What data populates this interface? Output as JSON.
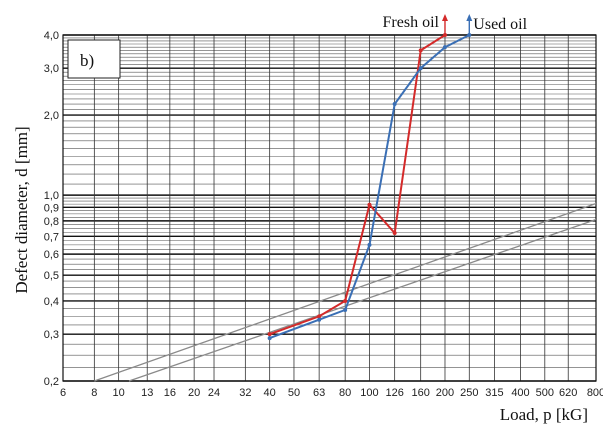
{
  "chart_data": {
    "type": "line",
    "panel_label": "b)",
    "xlabel": "Load, p [kG]",
    "ylabel": "Defect diameter, d [mm]",
    "x_scale": "log",
    "y_scale": "log",
    "xlim": [
      6,
      800
    ],
    "ylim": [
      0.2,
      4.0
    ],
    "x_ticks": [
      6,
      8,
      10,
      13,
      16,
      20,
      24,
      32,
      40,
      50,
      63,
      80,
      100,
      126,
      160,
      200,
      250,
      315,
      400,
      500,
      620,
      800
    ],
    "x_tick_labels": [
      "6",
      "8",
      "10",
      "13",
      "16",
      "20",
      "24",
      "32",
      "40",
      "50",
      "63",
      "80",
      "100",
      "126",
      "160",
      "200",
      "250",
      "315",
      "400",
      "500",
      "620",
      "800"
    ],
    "y_ticks": [
      0.2,
      0.3,
      0.4,
      0.5,
      0.6,
      0.7,
      0.8,
      0.9,
      1.0,
      2.0,
      3.0,
      4.0
    ],
    "y_tick_labels": [
      "0,2",
      "0,3",
      "0,4",
      "0,5",
      "0,6",
      "0,7",
      "0,8",
      "0,9",
      "1,0",
      "2,0",
      "3,0",
      "4,0"
    ],
    "grid": true,
    "legend_position": "top-right",
    "series": [
      {
        "name": "Fresh oil",
        "color": "#d42a2a",
        "x": [
          40,
          63,
          80,
          100,
          126,
          160,
          200
        ],
        "y": [
          0.3,
          0.35,
          0.4,
          0.92,
          0.72,
          3.5,
          4.0
        ]
      },
      {
        "name": "Used oil",
        "color": "#3a6fb5",
        "x": [
          40,
          63,
          80,
          100,
          126,
          160,
          200,
          250
        ],
        "y": [
          0.29,
          0.34,
          0.37,
          0.65,
          2.2,
          3.0,
          3.6,
          4.0
        ]
      }
    ],
    "reference_lines": [
      {
        "color": "#8a8a8a",
        "x": [
          8,
          800
        ],
        "y": [
          0.2,
          0.93
        ]
      },
      {
        "color": "#8a8a8a",
        "x": [
          11,
          800
        ],
        "y": [
          0.2,
          0.81
        ]
      }
    ]
  }
}
